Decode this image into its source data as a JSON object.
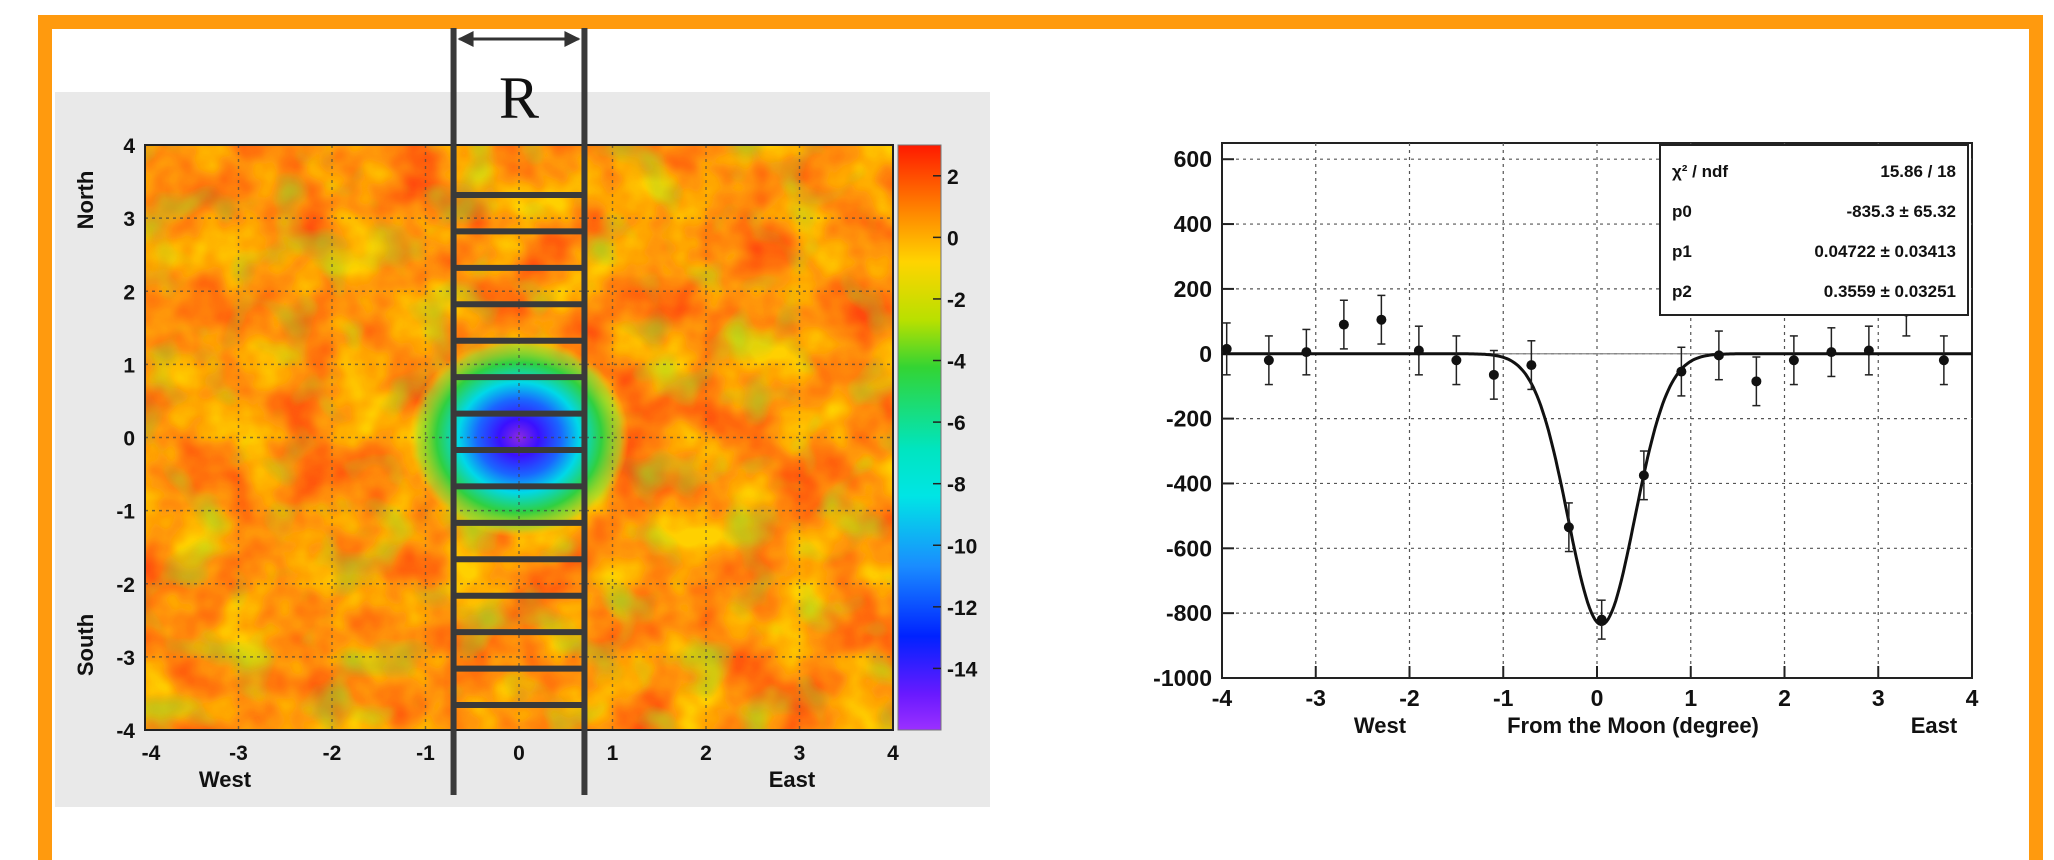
{
  "chart_data": [
    {
      "type": "heatmap",
      "xlabel_left": "West",
      "xlabel_right": "East",
      "ylabel_top": "North",
      "ylabel_bottom": "South",
      "xlim": [
        -4,
        4
      ],
      "ylim": [
        -4,
        4
      ],
      "xticks": [
        "-4",
        "-3",
        "-2",
        "-1",
        "0",
        "1",
        "2",
        "3",
        "4"
      ],
      "yticks": [
        "4",
        "3",
        "2",
        "1",
        "0",
        "-1",
        "-2",
        "-3",
        "-4"
      ],
      "colorbar": {
        "range": [
          -16,
          3
        ],
        "ticks": [
          "2",
          "0",
          "-2",
          "-4",
          "-6",
          "-8",
          "-10",
          "-12",
          "-14"
        ],
        "colors": {
          "high": "#ff1a00",
          "mid": "#ffd400",
          "low_green": "#33d433",
          "cyan": "#00e5e5",
          "blue": "#0022ff",
          "min": "#9b30ff"
        }
      },
      "deficit_center": [
        0,
        0
      ],
      "deficit_min": -15,
      "band": {
        "label": "R",
        "x_range": [
          -0.7,
          0.7
        ],
        "rungs": 15
      },
      "grid": true
    },
    {
      "type": "scatter",
      "xlabel_left": "West",
      "xlabel": "From the Moon (degree)",
      "xlabel_right": "East",
      "xlim": [
        -4,
        4
      ],
      "ylim": [
        -1000,
        650
      ],
      "xticks": [
        "-4",
        "-3",
        "-2",
        "-1",
        "0",
        "1",
        "2",
        "3",
        "4"
      ],
      "yticks": [
        "600",
        "400",
        "200",
        "0",
        "-200",
        "-400",
        "-600",
        "-800",
        "-1000"
      ],
      "grid": true,
      "points": [
        {
          "x": -3.95,
          "y": 15,
          "err": 80
        },
        {
          "x": -3.5,
          "y": -20,
          "err": 75
        },
        {
          "x": -3.1,
          "y": 5,
          "err": 70
        },
        {
          "x": -2.7,
          "y": 90,
          "err": 75
        },
        {
          "x": -2.3,
          "y": 105,
          "err": 75
        },
        {
          "x": -1.9,
          "y": 10,
          "err": 75
        },
        {
          "x": -1.5,
          "y": -20,
          "err": 75
        },
        {
          "x": -1.1,
          "y": -65,
          "err": 75
        },
        {
          "x": -0.7,
          "y": -35,
          "err": 75
        },
        {
          "x": -0.3,
          "y": -535,
          "err": 75
        },
        {
          "x": 0.05,
          "y": -820,
          "err": 60
        },
        {
          "x": 0.5,
          "y": -375,
          "err": 75
        },
        {
          "x": 0.9,
          "y": -55,
          "err": 75
        },
        {
          "x": 1.3,
          "y": -5,
          "err": 75
        },
        {
          "x": 1.7,
          "y": -85,
          "err": 75
        },
        {
          "x": 2.1,
          "y": -20,
          "err": 75
        },
        {
          "x": 2.5,
          "y": 5,
          "err": 75
        },
        {
          "x": 2.9,
          "y": 10,
          "err": 75
        },
        {
          "x": 3.3,
          "y": 130,
          "err": 75
        },
        {
          "x": 3.7,
          "y": -20,
          "err": 75
        }
      ],
      "fit": {
        "type": "gaussian",
        "p0": -835.3,
        "p1": 0.04722,
        "p2": 0.3559
      },
      "stats": [
        {
          "name": "χ² / ndf",
          "value": "15.86 / 18"
        },
        {
          "name": "p0",
          "value": "-835.3 ± 65.32"
        },
        {
          "name": "p1",
          "value": "0.04722 ± 0.03413"
        },
        {
          "name": "p2",
          "value": "0.3559 ± 0.03251"
        }
      ]
    }
  ]
}
